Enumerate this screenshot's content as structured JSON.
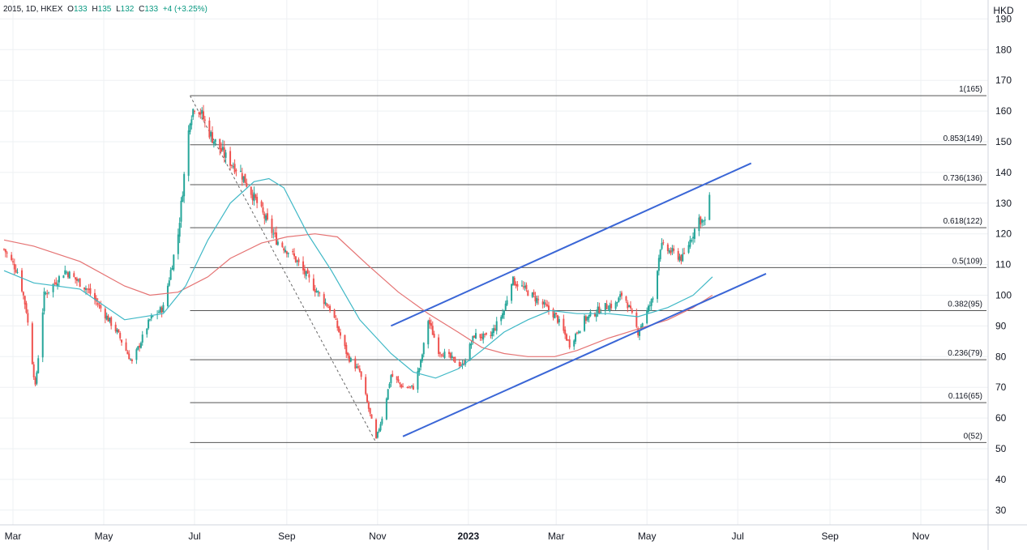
{
  "header": {
    "symbol": "2015, 1D, HKEX",
    "open_label": "O",
    "open": "133",
    "high_label": "H",
    "high": "135",
    "low_label": "L",
    "low": "132",
    "close_label": "C",
    "close": "133",
    "change": "+4 (+3.25%)"
  },
  "colors": {
    "up": "#26a69a",
    "down": "#ef5350",
    "ma_fast": "#3fb8c6",
    "ma_slow": "#e57373",
    "channel": "#3a66d6",
    "fib": "#555555",
    "grid": "#eef0f3",
    "text": "#131722"
  },
  "chart_data": {
    "type": "candlestick",
    "currency": "HKD",
    "y_range": [
      25,
      192
    ],
    "y_ticks": [
      30,
      40,
      50,
      60,
      70,
      80,
      90,
      100,
      110,
      120,
      130,
      140,
      150,
      160,
      170,
      180,
      190
    ],
    "x_ticks": [
      {
        "date": "2022-03-01",
        "label": "Mar"
      },
      {
        "date": "2022-05-01",
        "label": "May"
      },
      {
        "date": "2022-07-01",
        "label": "Jul"
      },
      {
        "date": "2022-09-01",
        "label": "Sep"
      },
      {
        "date": "2022-11-01",
        "label": "Nov"
      },
      {
        "date": "2023-01-01",
        "label": "2023"
      },
      {
        "date": "2023-03-01",
        "label": "Mar"
      },
      {
        "date": "2023-05-01",
        "label": "May"
      },
      {
        "date": "2023-07-01",
        "label": "Jul"
      },
      {
        "date": "2023-09-01",
        "label": "Sep"
      },
      {
        "date": "2023-11-01",
        "label": "Nov"
      }
    ],
    "price_anchors": [
      [
        "2022-02-23",
        115
      ],
      [
        "2022-03-05",
        107
      ],
      [
        "2022-03-10",
        95
      ],
      [
        "2022-03-16",
        70
      ],
      [
        "2022-03-22",
        100
      ],
      [
        "2022-04-05",
        108
      ],
      [
        "2022-04-20",
        102
      ],
      [
        "2022-05-10",
        88
      ],
      [
        "2022-05-20",
        78
      ],
      [
        "2022-06-01",
        92
      ],
      [
        "2022-06-10",
        96
      ],
      [
        "2022-06-20",
        120
      ],
      [
        "2022-06-28",
        158
      ],
      [
        "2022-07-02",
        163
      ],
      [
        "2022-07-12",
        152
      ],
      [
        "2022-07-22",
        145
      ],
      [
        "2022-08-01",
        140
      ],
      [
        "2022-08-12",
        130
      ],
      [
        "2022-08-25",
        118
      ],
      [
        "2022-09-05",
        113
      ],
      [
        "2022-09-20",
        102
      ],
      [
        "2022-10-01",
        95
      ],
      [
        "2022-10-12",
        80
      ],
      [
        "2022-10-20",
        75
      ],
      [
        "2022-10-31",
        53
      ],
      [
        "2022-11-05",
        62
      ],
      [
        "2022-11-10",
        74
      ],
      [
        "2022-11-18",
        70
      ],
      [
        "2022-11-25",
        70
      ],
      [
        "2022-11-30",
        78
      ],
      [
        "2022-12-05",
        92
      ],
      [
        "2022-12-12",
        82
      ],
      [
        "2022-12-28",
        77
      ],
      [
        "2023-01-05",
        87
      ],
      [
        "2023-01-15",
        86
      ],
      [
        "2023-01-25",
        95
      ],
      [
        "2023-01-30",
        105
      ],
      [
        "2023-02-05",
        103
      ],
      [
        "2023-02-20",
        97
      ],
      [
        "2023-03-01",
        93
      ],
      [
        "2023-03-10",
        84
      ],
      [
        "2023-03-20",
        92
      ],
      [
        "2023-04-01",
        96
      ],
      [
        "2023-04-10",
        97
      ],
      [
        "2023-04-15",
        101
      ],
      [
        "2023-04-25",
        88
      ],
      [
        "2023-05-05",
        99
      ],
      [
        "2023-05-10",
        116
      ],
      [
        "2023-05-25",
        112
      ],
      [
        "2023-06-05",
        125
      ],
      [
        "2023-06-10",
        123
      ],
      [
        "2023-06-12",
        133
      ]
    ],
    "ma_fast": [
      [
        "2022-02-23",
        108
      ],
      [
        "2022-03-15",
        104
      ],
      [
        "2022-04-15",
        102
      ],
      [
        "2022-05-15",
        92
      ],
      [
        "2022-06-10",
        94
      ],
      [
        "2022-06-25",
        103
      ],
      [
        "2022-07-10",
        118
      ],
      [
        "2022-07-25",
        130
      ],
      [
        "2022-08-10",
        137
      ],
      [
        "2022-08-20",
        138
      ],
      [
        "2022-08-30",
        135
      ],
      [
        "2022-09-15",
        120
      ],
      [
        "2022-10-01",
        108
      ],
      [
        "2022-10-20",
        92
      ],
      [
        "2022-11-10",
        81
      ],
      [
        "2022-11-25",
        75
      ],
      [
        "2022-12-10",
        73
      ],
      [
        "2022-12-25",
        76
      ],
      [
        "2023-01-10",
        82
      ],
      [
        "2023-01-25",
        88
      ],
      [
        "2023-02-10",
        92
      ],
      [
        "2023-02-25",
        95
      ],
      [
        "2023-03-15",
        94
      ],
      [
        "2023-04-05",
        94
      ],
      [
        "2023-04-25",
        93
      ],
      [
        "2023-05-15",
        96
      ],
      [
        "2023-06-01",
        100
      ],
      [
        "2023-06-14",
        106
      ]
    ],
    "ma_slow": [
      [
        "2022-02-23",
        118
      ],
      [
        "2022-03-15",
        116
      ],
      [
        "2022-04-15",
        111
      ],
      [
        "2022-05-15",
        103
      ],
      [
        "2022-06-01",
        100
      ],
      [
        "2022-06-20",
        101
      ],
      [
        "2022-07-10",
        106
      ],
      [
        "2022-07-25",
        112
      ],
      [
        "2022-08-15",
        117
      ],
      [
        "2022-09-01",
        119
      ],
      [
        "2022-09-20",
        120
      ],
      [
        "2022-10-05",
        119
      ],
      [
        "2022-10-25",
        110
      ],
      [
        "2022-11-15",
        101
      ],
      [
        "2022-12-05",
        94
      ],
      [
        "2022-12-25",
        88
      ],
      [
        "2023-01-10",
        83
      ],
      [
        "2023-01-25",
        81
      ],
      [
        "2023-02-10",
        80
      ],
      [
        "2023-02-28",
        80
      ],
      [
        "2023-03-15",
        82
      ],
      [
        "2023-04-05",
        86
      ],
      [
        "2023-04-25",
        89
      ],
      [
        "2023-05-15",
        92
      ],
      [
        "2023-06-01",
        96
      ],
      [
        "2023-06-14",
        100
      ]
    ],
    "fib_levels": [
      {
        "label": "1(165)",
        "value": 165
      },
      {
        "label": "0.853(149)",
        "value": 149
      },
      {
        "label": "0.736(136)",
        "value": 136
      },
      {
        "label": "0.618(122)",
        "value": 122
      },
      {
        "label": "0.5(109)",
        "value": 109
      },
      {
        "label": "0.382(95)",
        "value": 95
      },
      {
        "label": "0.236(79)",
        "value": 79
      },
      {
        "label": "0.116(65)",
        "value": 65
      },
      {
        "label": "0(52)",
        "value": 52
      }
    ],
    "fib_start_date": "2022-06-28",
    "channel_lines": [
      {
        "name": "upper",
        "from": [
          "2022-11-10",
          90
        ],
        "to": [
          "2023-07-10",
          143
        ]
      },
      {
        "name": "lower",
        "from": [
          "2022-11-18",
          54
        ],
        "to": [
          "2023-07-20",
          107
        ]
      }
    ],
    "retracement_line": {
      "from": [
        "2022-06-28",
        165
      ],
      "to": [
        "2022-10-31",
        52
      ]
    }
  }
}
